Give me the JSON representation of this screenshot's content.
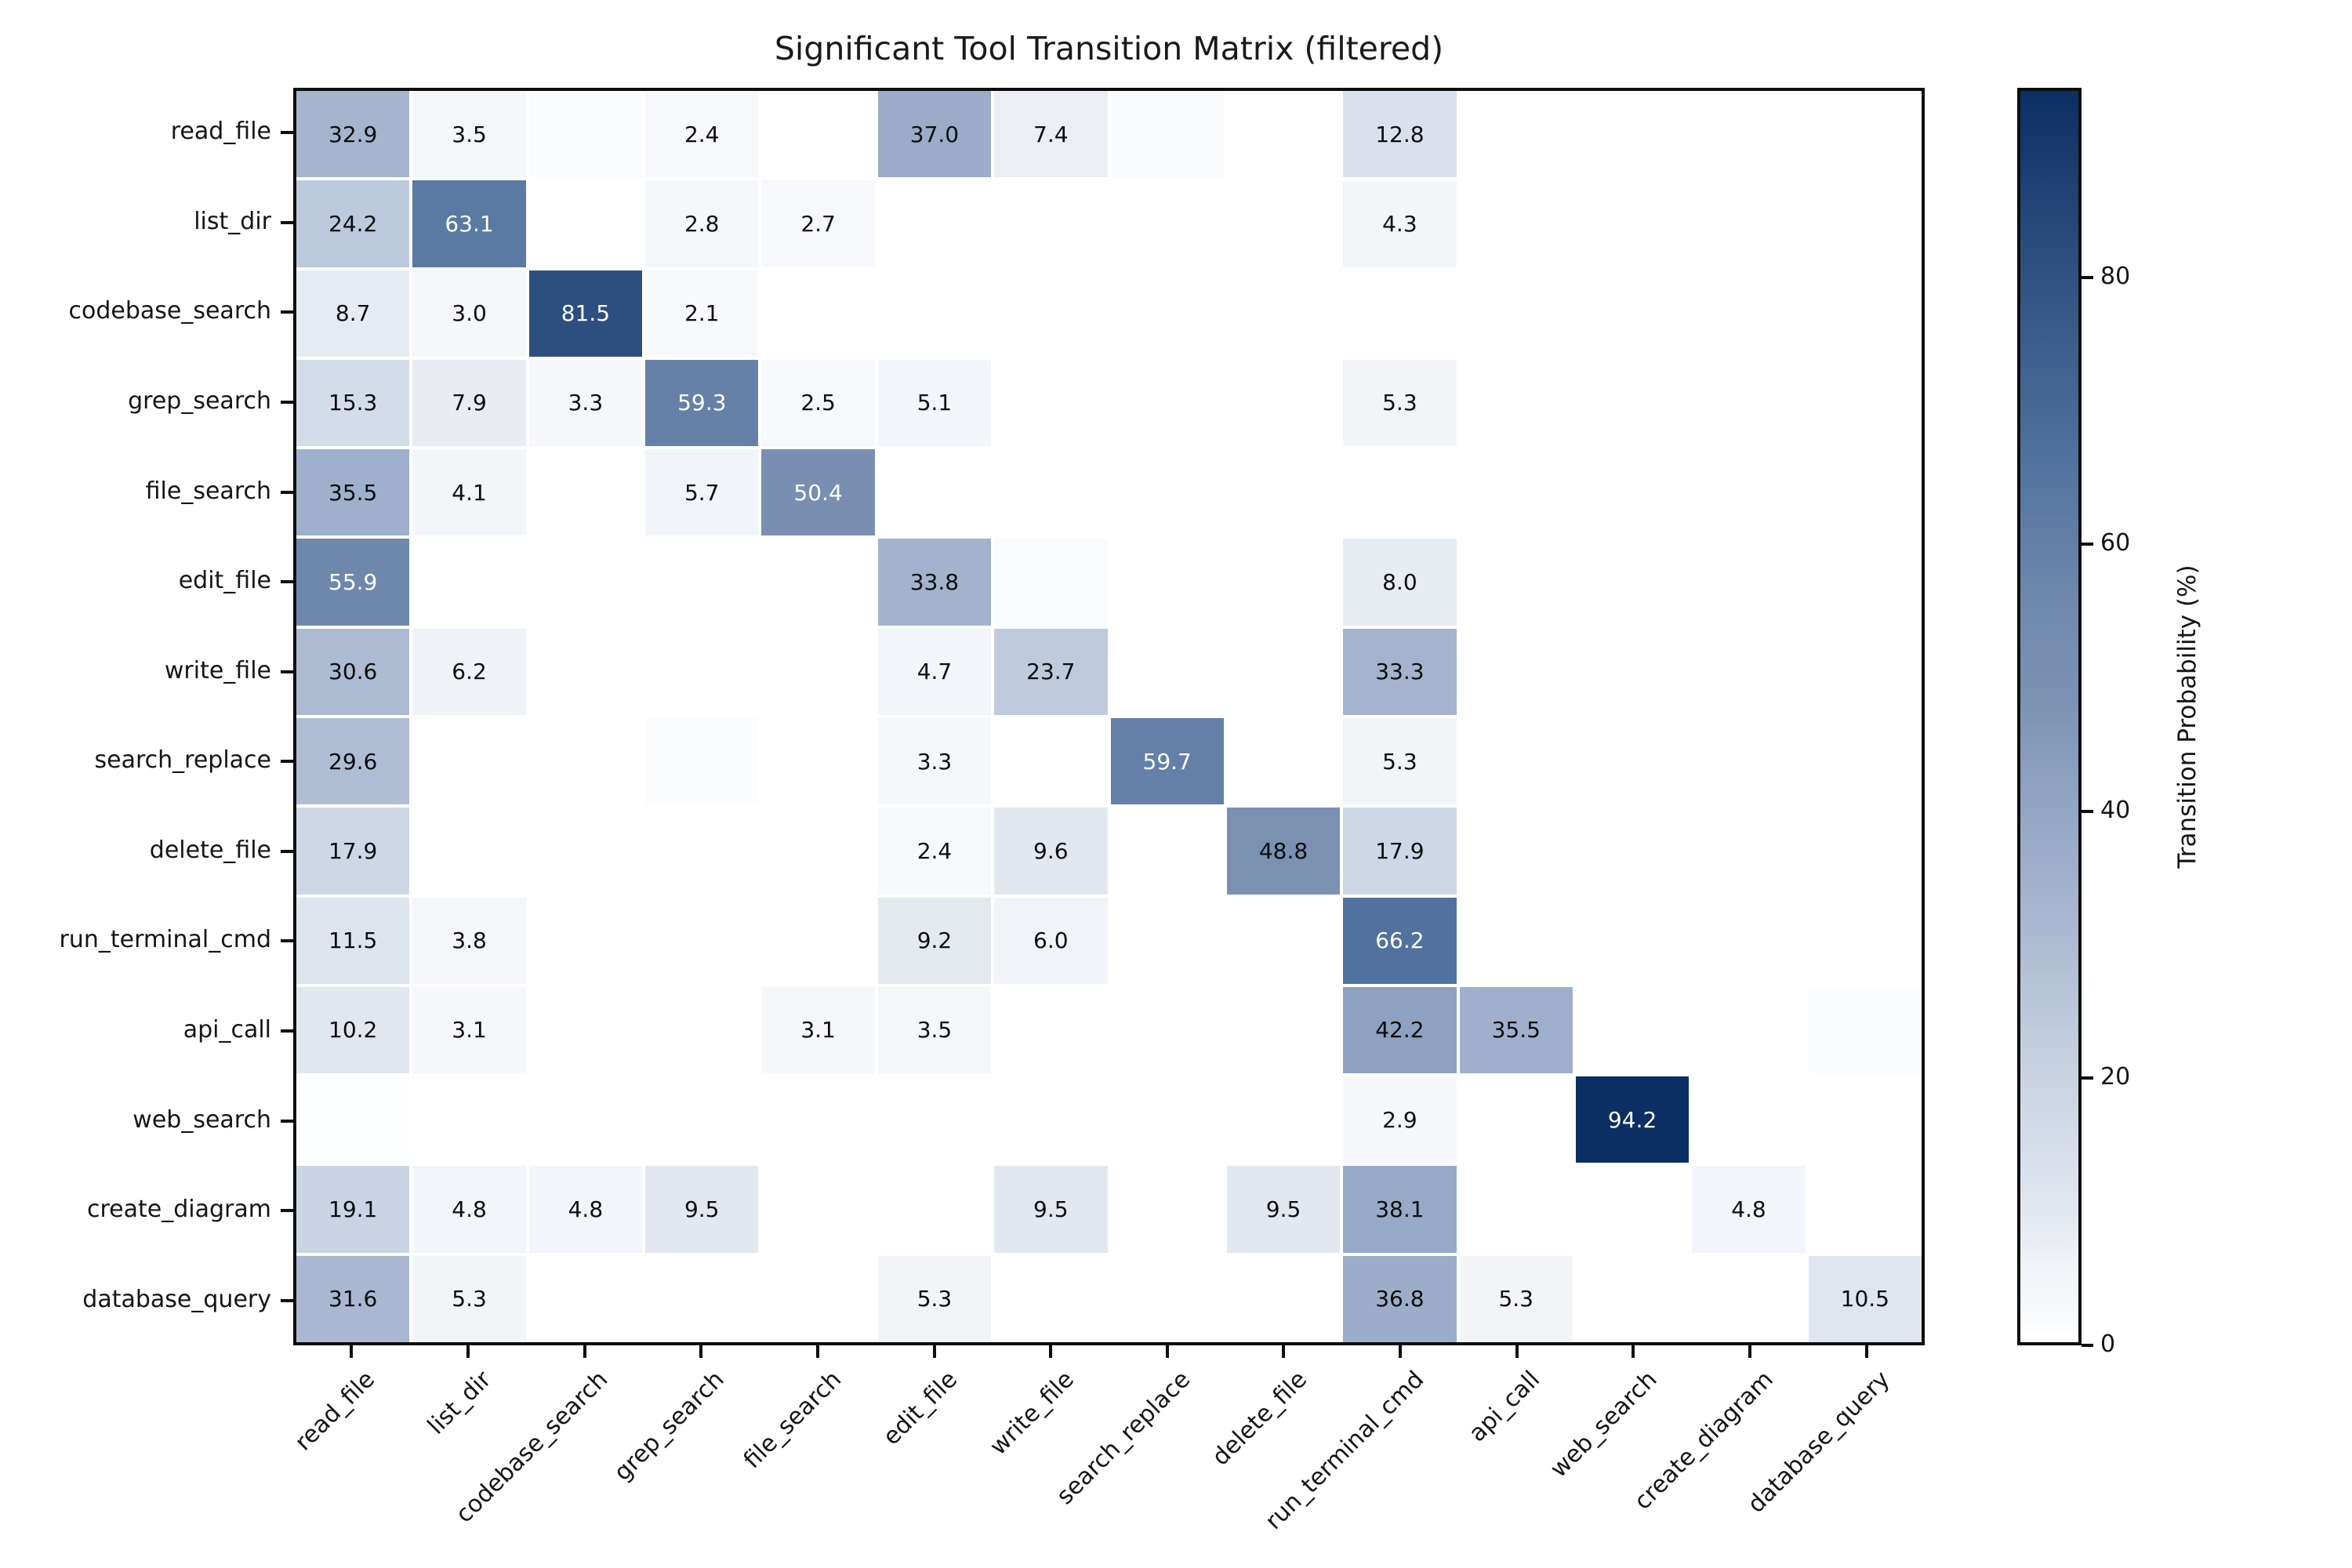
{
  "chart_data": {
    "type": "heatmap",
    "title": "Significant Tool Transition Matrix (filtered)",
    "tools": [
      "read_file",
      "list_dir",
      "codebase_search",
      "grep_search",
      "file_search",
      "edit_file",
      "write_file",
      "search_replace",
      "delete_file",
      "run_terminal_cmd",
      "api_call",
      "web_search",
      "create_diagram",
      "database_query"
    ],
    "matrix": [
      [
        32.9,
        3.5,
        1.2,
        2.4,
        0,
        37.0,
        7.4,
        1.6,
        0,
        12.8,
        0,
        0,
        0,
        0
      ],
      [
        24.2,
        63.1,
        0,
        2.8,
        2.7,
        0,
        0,
        0,
        0,
        4.3,
        0,
        0,
        0,
        0
      ],
      [
        8.7,
        3.0,
        81.5,
        2.1,
        0,
        0,
        0,
        0,
        0,
        0,
        0,
        0,
        0,
        0
      ],
      [
        15.3,
        7.9,
        3.3,
        59.3,
        2.5,
        5.1,
        0,
        0,
        0,
        5.3,
        0,
        0,
        0,
        0
      ],
      [
        35.5,
        4.1,
        0,
        5.7,
        50.4,
        0,
        0,
        0,
        0,
        0,
        0,
        0,
        0,
        0
      ],
      [
        55.9,
        0,
        0,
        0,
        0,
        33.8,
        1.5,
        0,
        0,
        8.0,
        0,
        0,
        0,
        0
      ],
      [
        30.6,
        6.2,
        0,
        0,
        0,
        4.7,
        23.7,
        0,
        0,
        33.3,
        0,
        0,
        0,
        0
      ],
      [
        29.6,
        0,
        0,
        1.0,
        0,
        3.3,
        0,
        59.7,
        0,
        5.3,
        0,
        0,
        0,
        0
      ],
      [
        17.9,
        0,
        0,
        0,
        0,
        2.4,
        9.6,
        0,
        48.8,
        17.9,
        0,
        0,
        0,
        0
      ],
      [
        11.5,
        3.8,
        0,
        0,
        0,
        9.2,
        6.0,
        0,
        0,
        66.2,
        0,
        0,
        0,
        0
      ],
      [
        10.2,
        3.1,
        0,
        0,
        3.1,
        3.5,
        0,
        0,
        0,
        42.2,
        35.5,
        0,
        0,
        1.0
      ],
      [
        0.8,
        0,
        0,
        0,
        0,
        0,
        0,
        0,
        0,
        2.9,
        0,
        94.2,
        0,
        0
      ],
      [
        19.1,
        4.8,
        4.8,
        9.5,
        0,
        0,
        9.5,
        0,
        9.5,
        38.1,
        0,
        0,
        4.8,
        0
      ],
      [
        31.6,
        5.3,
        0,
        0,
        0,
        5.3,
        0,
        0,
        0,
        36.8,
        5.3,
        0,
        0,
        10.5
      ]
    ],
    "annotation_min_value": 2.0,
    "white_text_threshold": 50,
    "colorbar": {
      "label": "Transition Probability (%)",
      "ticks": [
        0,
        20,
        40,
        60,
        80
      ],
      "vmin": 0,
      "vmax": 94.2
    },
    "color_ramp": [
      [
        0.0,
        "#ffffff"
      ],
      [
        0.026,
        "#f6f8fb"
      ],
      [
        0.06,
        "#f1f4f8"
      ],
      [
        0.1,
        "#e3e8f0"
      ],
      [
        0.2,
        "#ccd5e4"
      ],
      [
        0.35,
        "#a5b5ce"
      ],
      [
        0.45,
        "#8ca1c1"
      ],
      [
        0.52,
        "#7b91b2"
      ],
      [
        0.6,
        "#6d87ac"
      ],
      [
        0.7,
        "#52739f"
      ],
      [
        0.87,
        "#2c4e7e"
      ],
      [
        1.0,
        "#0b2e63"
      ]
    ],
    "legend_position": "right",
    "grid": "white cell separators"
  }
}
